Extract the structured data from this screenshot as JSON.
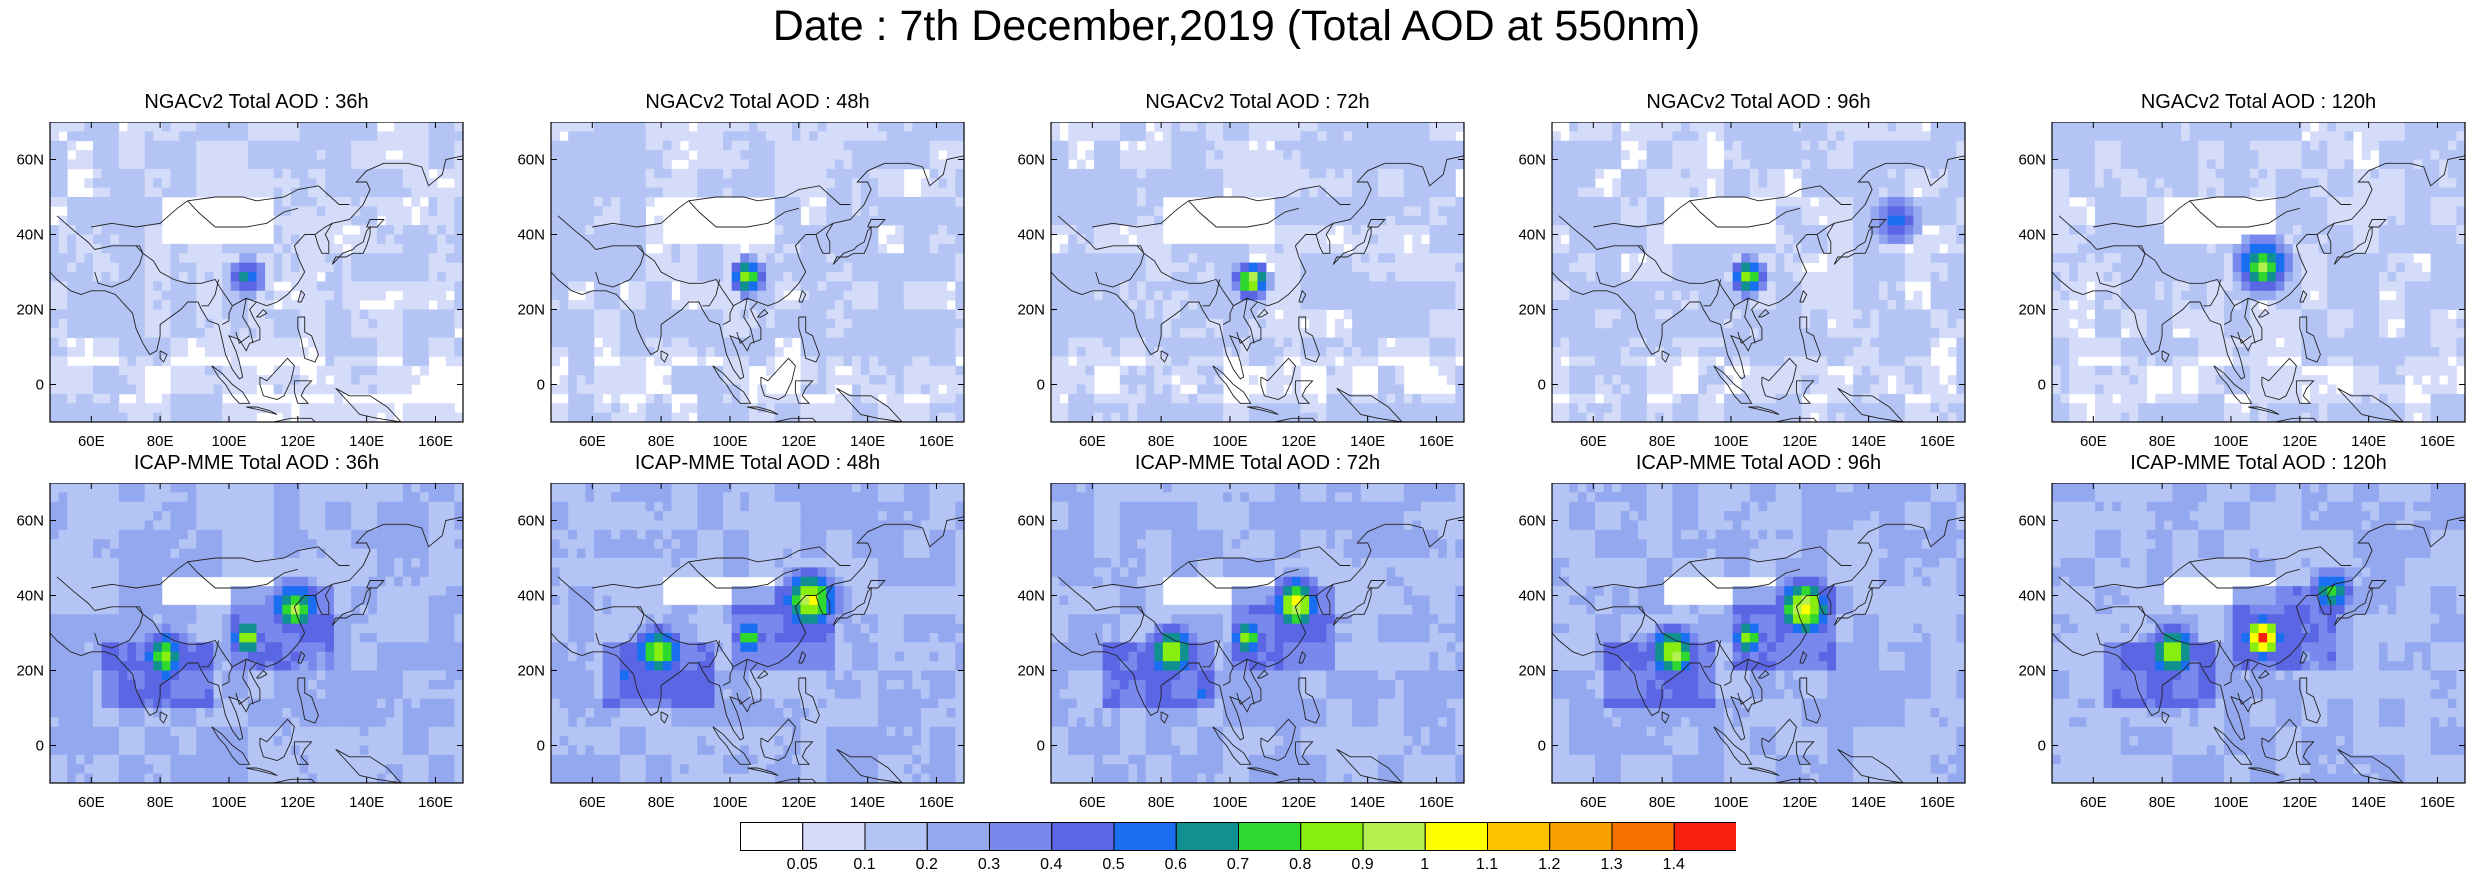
{
  "title": "Date : 7th December,2019 (Total AOD at 550nm)",
  "rows": [
    {
      "model": "NGACv2",
      "panels": [
        {
          "title": "NGACv2 Total AOD : 36h",
          "hotspots": [
            {
              "lon": 104,
              "lat": 30,
              "aod": 0.5,
              "r": 6
            }
          ]
        },
        {
          "title": "NGACv2 Total AOD : 48h",
          "hotspots": [
            {
              "lon": 104,
              "lat": 30,
              "aod": 0.75,
              "r": 6
            }
          ]
        },
        {
          "title": "NGACv2 Total AOD : 72h",
          "hotspots": [
            {
              "lon": 105,
              "lat": 29,
              "aod": 0.9,
              "r": 6
            }
          ]
        },
        {
          "title": "NGACv2 Total AOD : 96h",
          "hotspots": [
            {
              "lon": 104,
              "lat": 30,
              "aod": 0.75,
              "r": 6
            },
            {
              "lon": 147,
              "lat": 45,
              "aod": 0.45,
              "r": 7
            }
          ]
        },
        {
          "title": "NGACv2 Total AOD : 120h",
          "hotspots": [
            {
              "lon": 108,
              "lat": 33,
              "aod": 0.75,
              "r": 9
            }
          ]
        }
      ]
    },
    {
      "model": "ICAP-MME",
      "panels": [
        {
          "title": "ICAP-MME Total AOD : 36h",
          "hotspots": [
            {
              "lon": 80,
              "lat": 25,
              "aod": 0.7,
              "r": 9
            },
            {
              "lon": 104,
              "lat": 30,
              "aod": 0.8,
              "r": 6
            },
            {
              "lon": 118,
              "lat": 38,
              "aod": 0.75,
              "r": 9
            }
          ]
        },
        {
          "title": "ICAP-MME Total AOD : 48h",
          "hotspots": [
            {
              "lon": 78,
              "lat": 26,
              "aod": 0.75,
              "r": 9
            },
            {
              "lon": 104,
              "lat": 30,
              "aod": 0.7,
              "r": 6
            },
            {
              "lon": 122,
              "lat": 40,
              "aod": 0.9,
              "r": 10
            }
          ]
        },
        {
          "title": "ICAP-MME Total AOD : 72h",
          "hotspots": [
            {
              "lon": 82,
              "lat": 26,
              "aod": 0.8,
              "r": 9
            },
            {
              "lon": 104,
              "lat": 30,
              "aod": 0.75,
              "r": 6
            },
            {
              "lon": 118,
              "lat": 39,
              "aod": 0.9,
              "r": 9
            }
          ]
        },
        {
          "title": "ICAP-MME Total AOD : 96h",
          "hotspots": [
            {
              "lon": 82,
              "lat": 26,
              "aod": 0.85,
              "r": 9
            },
            {
              "lon": 104,
              "lat": 30,
              "aod": 0.75,
              "r": 6
            },
            {
              "lon": 120,
              "lat": 38,
              "aod": 0.95,
              "r": 10
            }
          ]
        },
        {
          "title": "ICAP-MME Total AOD : 120h",
          "hotspots": [
            {
              "lon": 82,
              "lat": 26,
              "aod": 0.8,
              "r": 9
            },
            {
              "lon": 108,
              "lat": 30,
              "aod": 1.3,
              "r": 7
            },
            {
              "lon": 128,
              "lat": 42,
              "aod": 0.6,
              "r": 8
            }
          ]
        }
      ]
    }
  ],
  "map_extent": {
    "lon_min": 48,
    "lon_max": 168,
    "lat_min": -10,
    "lat_max": 70
  },
  "lon_ticks": [
    "60E",
    "80E",
    "100E",
    "120E",
    "140E",
    "160E"
  ],
  "lon_tick_values": [
    60,
    80,
    100,
    120,
    140,
    160
  ],
  "lat_ticks": [
    "60N",
    "40N",
    "20N",
    "0"
  ],
  "lat_tick_values": [
    60,
    40,
    20,
    0
  ],
  "colorbar": {
    "labels": [
      "0.05",
      "0.1",
      "0.2",
      "0.3",
      "0.4",
      "0.5",
      "0.6",
      "0.7",
      "0.8",
      "0.9",
      "1",
      "1.1",
      "1.2",
      "1.3",
      "1.4"
    ],
    "colors": [
      "#ffffff",
      "#d4dcfa",
      "#b4c4f4",
      "#94a8f0",
      "#7888ec",
      "#5a66e4",
      "#1a6ef2",
      "#109090",
      "#2ed82e",
      "#88ee10",
      "#b4f050",
      "#ffff00",
      "#fcc400",
      "#f8a000",
      "#f87000",
      "#f82010"
    ]
  }
}
